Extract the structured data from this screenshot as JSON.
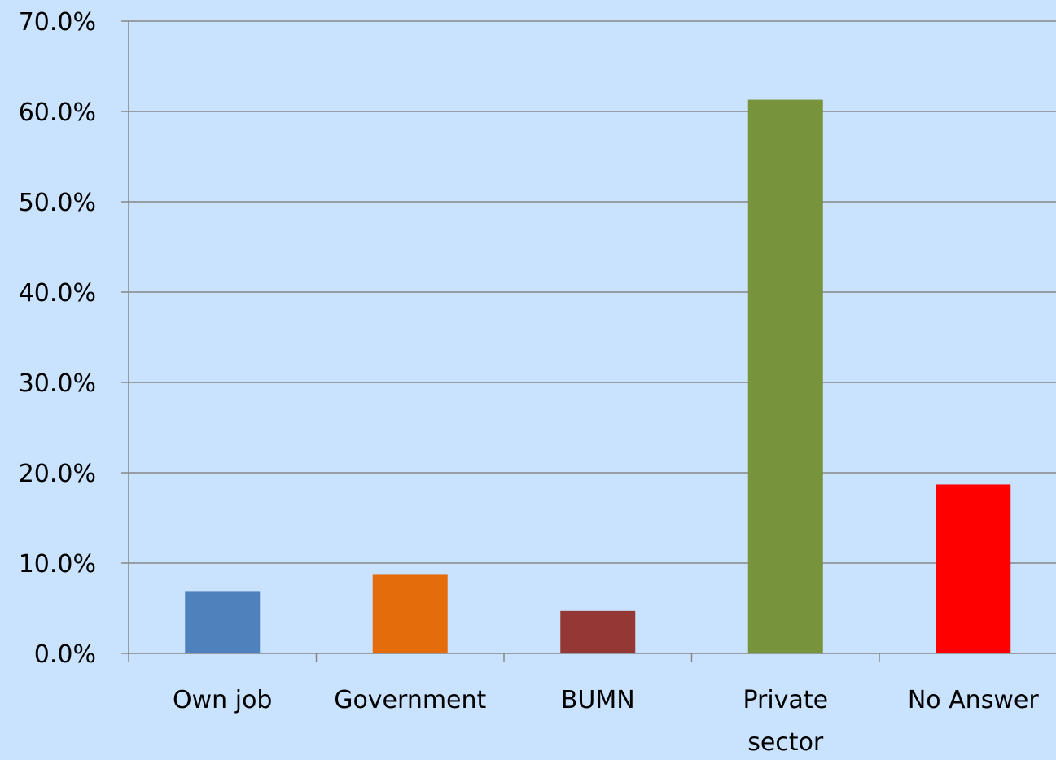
{
  "chart_data": {
    "type": "bar",
    "categories": [
      "Own job",
      "Government",
      "BUMN",
      "Private sector",
      "No Answer"
    ],
    "category_label_lines": [
      [
        "Own job"
      ],
      [
        "Government"
      ],
      [
        "BUMN"
      ],
      [
        "Private",
        "sector"
      ],
      [
        "No Answer"
      ]
    ],
    "values": [
      6.9,
      8.7,
      4.7,
      61.3,
      18.7
    ],
    "bar_colors": [
      "#4f81bd",
      "#e46c0a",
      "#953735",
      "#77933c",
      "#ff0000"
    ],
    "y_ticks": [
      "0.0%",
      "10.0%",
      "20.0%",
      "30.0%",
      "40.0%",
      "50.0%",
      "60.0%",
      "70.0%"
    ],
    "ylim": [
      0,
      70
    ],
    "grid": true,
    "legend": "none",
    "title": "",
    "xlabel": "",
    "ylabel": ""
  }
}
